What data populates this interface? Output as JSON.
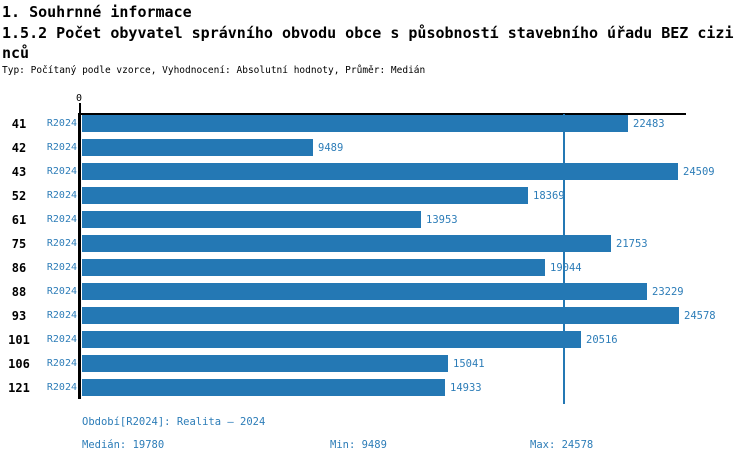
{
  "header": {
    "section_title": "1. Souhrnné informace",
    "chart_title": "1.5.2 Počet obyvatel správního obvodu obce s působností stavebního úřadu BEZ cizinců",
    "meta_line": "Typ: Počítaný podle vzorce, Vyhodnocení: Absolutní hodnoty, Průměr: Medián"
  },
  "chart_data": {
    "type": "bar",
    "orientation": "horizontal",
    "title": "1.5.2 Počet obyvatel správního obvodu obce s působností stavebního úřadu BEZ cizinců",
    "categories": [
      "41",
      "42",
      "43",
      "52",
      "61",
      "75",
      "86",
      "88",
      "93",
      "101",
      "106",
      "121"
    ],
    "series": [
      {
        "name": "R2024",
        "values": [
          22483,
          9489,
          24509,
          18369,
          13953,
          21753,
          19044,
          23229,
          24578,
          20516,
          15041,
          14933
        ]
      }
    ],
    "value_labels_shown": true,
    "zero_tick_label": "0",
    "xlim": [
      0,
      24850
    ],
    "grid": false,
    "median": 19780,
    "min": 9489,
    "max": 24578,
    "median_line_shown": true,
    "bar_color": "#2478b4",
    "label_color": "#2d7db8",
    "axis_color": "#000000"
  },
  "footer": {
    "period": "Období[R2024]: Realita – 2024",
    "median": "Medián: 19780",
    "min": "Min: 9489",
    "max": "Max: 24578"
  }
}
